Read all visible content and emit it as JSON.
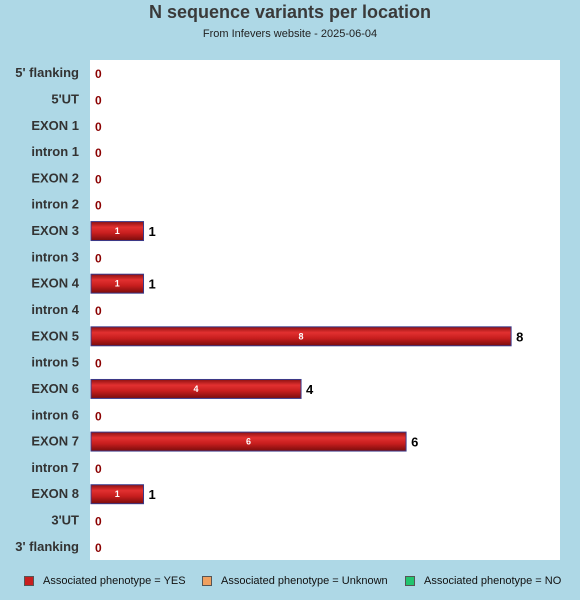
{
  "chart_data": {
    "type": "bar",
    "orientation": "horizontal",
    "title": "N sequence variants per location",
    "subtitle": "From Infevers website - 2025-06-04",
    "categories": [
      "5' flanking",
      "5'UT",
      "EXON 1",
      "intron 1",
      "EXON 2",
      "intron 2",
      "EXON 3",
      "intron 3",
      "EXON 4",
      "intron 4",
      "EXON 5",
      "intron 5",
      "EXON 6",
      "intron 6",
      "EXON 7",
      "intron 7",
      "EXON 8",
      "3'UT",
      "3' flanking"
    ],
    "series": [
      {
        "name": "Associated phenotype = YES",
        "color": "#c81e1e",
        "values": [
          0,
          0,
          0,
          0,
          0,
          0,
          1,
          0,
          1,
          0,
          8,
          0,
          4,
          0,
          6,
          0,
          1,
          0,
          0
        ]
      },
      {
        "name": "Associated phenotype = Unknown",
        "color": "#f0a060",
        "values": [
          0,
          0,
          0,
          0,
          0,
          0,
          0,
          0,
          0,
          0,
          0,
          0,
          0,
          0,
          0,
          0,
          0,
          0,
          0
        ]
      },
      {
        "name": "Associated phenotype = NO",
        "color": "#22c46e",
        "values": [
          0,
          0,
          0,
          0,
          0,
          0,
          0,
          0,
          0,
          0,
          0,
          0,
          0,
          0,
          0,
          0,
          0,
          0,
          0
        ]
      }
    ],
    "totals": [
      0,
      0,
      0,
      0,
      0,
      0,
      1,
      0,
      1,
      0,
      8,
      0,
      4,
      0,
      6,
      0,
      1,
      0,
      0
    ],
    "xlim": [
      0,
      8.95
    ],
    "grid": false,
    "legend_position": "bottom",
    "colors": {
      "background": "#aed8e6",
      "plot_background": "#ffffff",
      "bar_border": "#3a3a8a"
    }
  }
}
